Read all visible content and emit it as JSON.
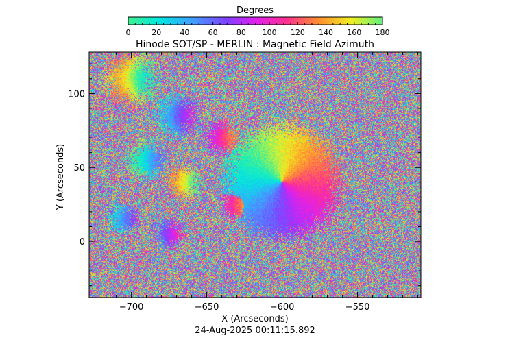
{
  "chart_data": {
    "type": "heatmap",
    "title": "Hinode SOT/SP - MERLIN : Magnetic Field Azimuth",
    "xlabel": "X (Arcseconds)",
    "ylabel": "Y (Arcseconds)",
    "timestamp": "24-Aug-2025 00:11:15.892",
    "xlim": [
      -728,
      -508
    ],
    "ylim": [
      -38,
      128
    ],
    "x_ticks": [
      -700,
      -650,
      -600,
      -550
    ],
    "y_ticks": [
      0,
      50,
      100
    ],
    "colorbar": {
      "title": "Degrees",
      "range": [
        0,
        180
      ],
      "ticks": [
        0,
        20,
        40,
        60,
        80,
        100,
        120,
        140,
        160,
        180
      ],
      "colormap": "cyclic",
      "stops": [
        {
          "v": 0,
          "color": "#40f090"
        },
        {
          "v": 22,
          "color": "#00e8e0"
        },
        {
          "v": 45,
          "color": "#40a0ff"
        },
        {
          "v": 70,
          "color": "#8040ff"
        },
        {
          "v": 90,
          "color": "#e020f0"
        },
        {
          "v": 112,
          "color": "#ff3090"
        },
        {
          "v": 135,
          "color": "#ff9030"
        },
        {
          "v": 158,
          "color": "#f0f020"
        },
        {
          "v": 180,
          "color": "#60f080"
        }
      ]
    },
    "features": {
      "sunspot": {
        "x": -600,
        "y": 40,
        "radius": 32
      },
      "plage": [
        {
          "x": -700,
          "y": 110,
          "r": 22,
          "angle": 150
        },
        {
          "x": -670,
          "y": 85,
          "r": 18,
          "angle": 40
        },
        {
          "x": -690,
          "y": 55,
          "r": 16,
          "angle": 10
        },
        {
          "x": -640,
          "y": 70,
          "r": 14,
          "angle": 90
        },
        {
          "x": -665,
          "y": 40,
          "r": 14,
          "angle": 140
        },
        {
          "x": -630,
          "y": 25,
          "r": 14,
          "angle": 100
        },
        {
          "x": -705,
          "y": 15,
          "r": 12,
          "angle": 30
        },
        {
          "x": -675,
          "y": 5,
          "r": 12,
          "angle": 60
        }
      ]
    }
  }
}
